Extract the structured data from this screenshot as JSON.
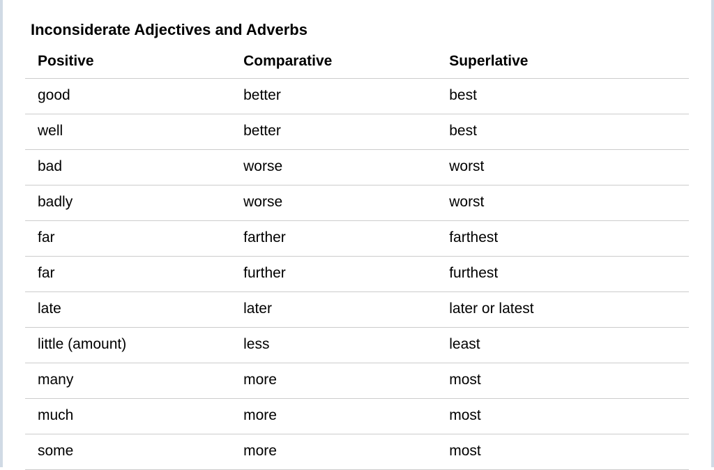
{
  "title": "Inconsiderate Adjectives and Adverbs",
  "table": {
    "columns": [
      "Positive",
      "Comparative",
      "Superlative"
    ],
    "rows": [
      [
        "good",
        "better",
        "best"
      ],
      [
        "well",
        "better",
        "best"
      ],
      [
        "bad",
        "worse",
        "worst"
      ],
      [
        "badly",
        "worse",
        "worst"
      ],
      [
        "far",
        "farther",
        "farthest"
      ],
      [
        "far",
        "further",
        "furthest"
      ],
      [
        "late",
        "later",
        "later or latest"
      ],
      [
        "little (amount)",
        "less",
        "least"
      ],
      [
        "many",
        "more",
        "most"
      ],
      [
        "much",
        "more",
        "most"
      ],
      [
        "some",
        "more",
        "most"
      ]
    ],
    "header_fontsize": 21,
    "header_fontweight": "bold",
    "cell_fontsize": 21,
    "cell_fontweight": "normal",
    "text_color": "#000000",
    "border_color": "#cccccc",
    "background_color": "#ffffff",
    "page_border_color": "#d0dae5",
    "column_widths": [
      "31%",
      "31%",
      "38%"
    ]
  }
}
